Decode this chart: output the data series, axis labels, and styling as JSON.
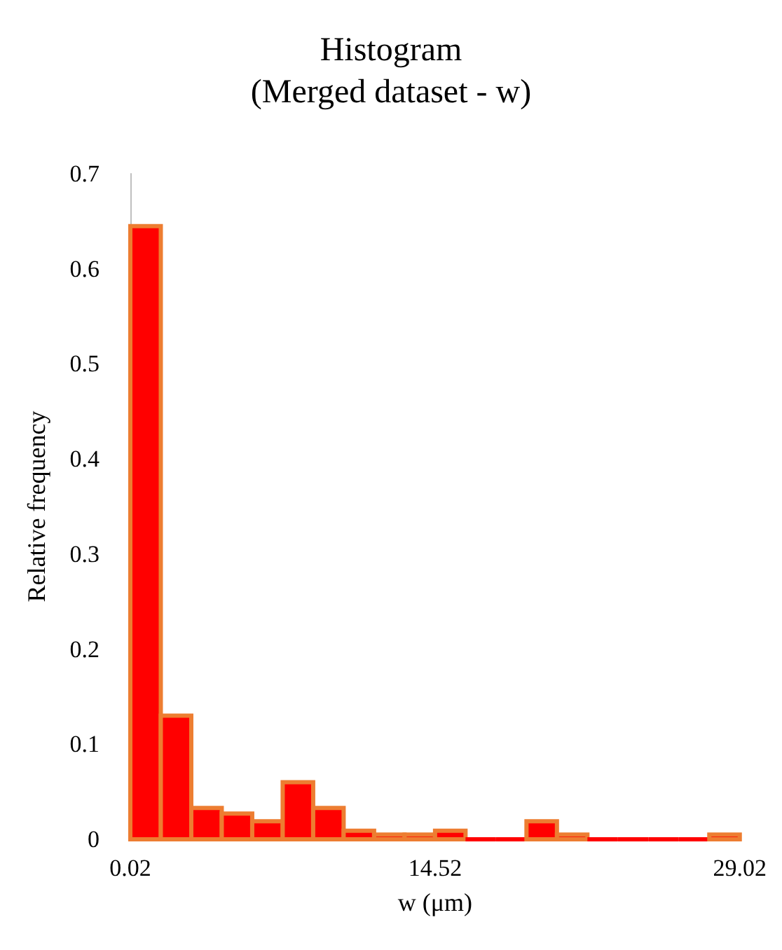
{
  "chart_data": {
    "type": "histogram",
    "title": "Histogram\n(Merged dataset - w)",
    "xlabel": "w (μm)",
    "ylabel": "Relative frequency",
    "bins": [
      0.02,
      1.47,
      2.92,
      4.37,
      5.82,
      7.27,
      8.72,
      10.17,
      11.62,
      13.07,
      14.52,
      15.97,
      17.42,
      18.87,
      20.32,
      21.77,
      23.22,
      24.67,
      26.12,
      27.57,
      29.02
    ],
    "values": [
      0.645,
      0.13,
      0.033,
      0.027,
      0.019,
      0.06,
      0.033,
      0.009,
      0.005,
      0.005,
      0.009,
      0,
      0,
      0.019,
      0.005,
      0,
      0,
      0,
      0,
      0.005
    ],
    "color": "#ff0000",
    "xlim": [
      0.02,
      29.02
    ],
    "xticks": [
      0.02,
      14.52,
      29.02
    ],
    "ylim": [
      0,
      0.7
    ],
    "yticks": [
      0,
      0.1,
      0.2,
      0.3,
      0.4,
      0.5,
      0.6,
      0.7
    ]
  }
}
